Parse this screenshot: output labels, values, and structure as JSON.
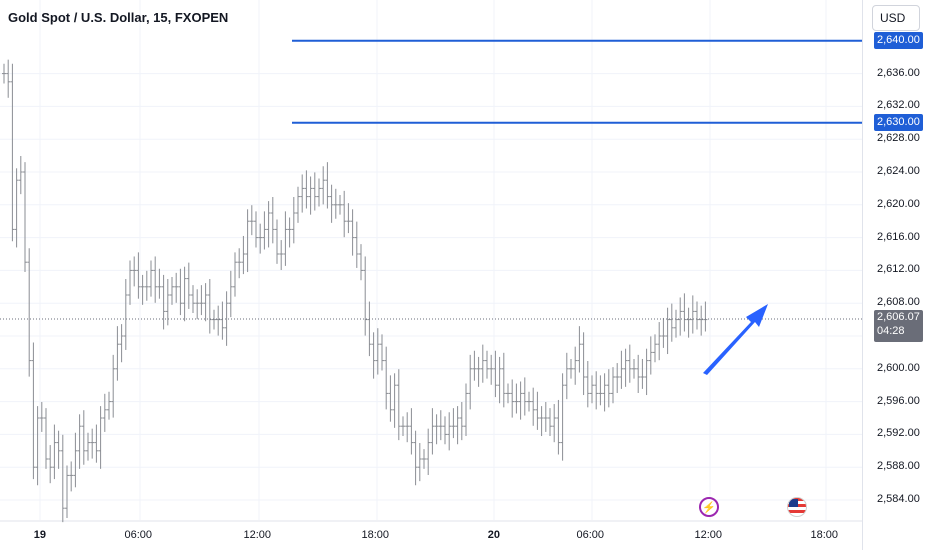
{
  "header": {
    "symbol_title": "Gold Spot / U.S. Dollar, 15, FXOPEN",
    "currency_button": "USD"
  },
  "chart_data": {
    "type": "ohlc",
    "title": "Gold Spot / U.S. Dollar, 15, FXOPEN",
    "currency": "USD",
    "y_axis": {
      "ticks": [
        "2,584.00",
        "2,588.00",
        "2,592.00",
        "2,596.00",
        "2,600.00",
        "2,604.00",
        "2,608.00",
        "2,612.00",
        "2,616.00",
        "2,620.00",
        "2,624.00",
        "2,628.00",
        "2,632.00",
        "2,636.00"
      ],
      "tick_values": [
        2584,
        2588,
        2592,
        2596,
        2600,
        2604,
        2608,
        2612,
        2616,
        2620,
        2624,
        2628,
        2632,
        2636
      ]
    },
    "x_axis": {
      "ticks": [
        {
          "label": "19",
          "bold": true
        },
        {
          "label": "06:00",
          "bold": false
        },
        {
          "label": "12:00",
          "bold": false
        },
        {
          "label": "18:00",
          "bold": false
        },
        {
          "label": "20",
          "bold": true
        },
        {
          "label": "06:00",
          "bold": false
        },
        {
          "label": "12:00",
          "bold": false
        },
        {
          "label": "18:00",
          "bold": false
        }
      ]
    },
    "horizontal_levels": [
      {
        "value": 2640.0,
        "label": "2,640.00",
        "color": "#1f5ed6"
      },
      {
        "value": 2630.0,
        "label": "2,630.00",
        "color": "#1f5ed6"
      }
    ],
    "current_price": {
      "value": 2606.07,
      "label": "2,606.07",
      "countdown": "04:28"
    },
    "closes": [
      2636,
      2635,
      2617,
      2623,
      2624,
      2613,
      2601,
      2588,
      2594,
      2594,
      2589,
      2588,
      2591,
      2590,
      2583,
      2587,
      2587,
      2590,
      2593,
      2590,
      2591,
      2591,
      2590,
      2594,
      2595,
      2596,
      2600,
      2603,
      2604,
      2609,
      2612,
      2612,
      2610,
      2610,
      2610,
      2612,
      2610,
      2610,
      2607,
      2609,
      2610,
      2610,
      2608,
      2611,
      2609,
      2608,
      2608,
      2608,
      2609,
      2606,
      2606,
      2606,
      2605,
      2608,
      2610,
      2613,
      2613,
      2614,
      2618,
      2618,
      2616,
      2616,
      2617,
      2619,
      2617,
      2614,
      2614,
      2617,
      2617,
      2619,
      2621,
      2622,
      2621,
      2622,
      2621,
      2622,
      2623,
      2621,
      2620,
      2620,
      2620,
      2618,
      2618,
      2616,
      2614,
      2612,
      2606,
      2603,
      2601,
      2603,
      2601,
      2597,
      2595,
      2598,
      2593,
      2593,
      2593,
      2591,
      2588,
      2589,
      2589,
      2591,
      2593,
      2593,
      2593,
      2592,
      2593,
      2593,
      2594,
      2593,
      2597,
      2600,
      2600,
      2600,
      2601,
      2600,
      2600,
      2598,
      2600,
      2597,
      2597,
      2596,
      2596,
      2597,
      2596,
      2596,
      2595,
      2594,
      2594,
      2594,
      2593,
      2594,
      2591,
      2598,
      2600,
      2600,
      2601,
      2603,
      2599,
      2597,
      2598,
      2597,
      2597,
      2598,
      2597,
      2599,
      2599,
      2600,
      2601,
      2600,
      2600,
      2599,
      2599,
      2601,
      2602,
      2603,
      2604,
      2604,
      2606,
      2605,
      2606,
      2607,
      2606,
      2606,
      2607,
      2606,
      2606,
      2606
    ]
  },
  "arrow": {
    "color": "#2962ff",
    "direction": "up"
  },
  "events": [
    {
      "name": "lightning-event-icon",
      "glyph": "⚡"
    },
    {
      "name": "us-flag-event-icon",
      "glyph": ""
    }
  ]
}
